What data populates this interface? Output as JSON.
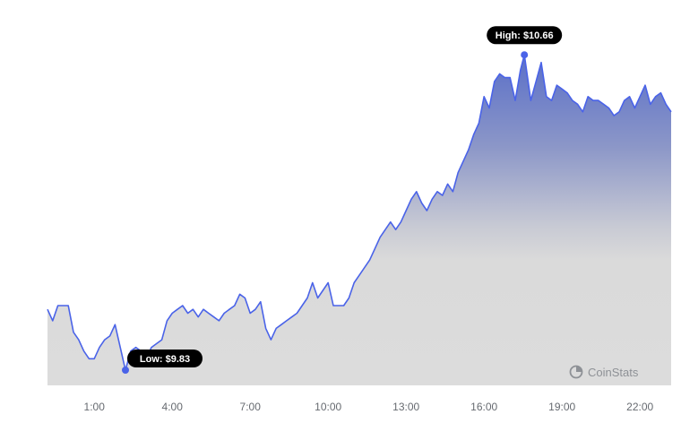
{
  "chart_data": {
    "type": "area",
    "x_ticks": [
      "1:00",
      "4:00",
      "7:00",
      "10:00",
      "13:00",
      "16:00",
      "19:00",
      "22:00"
    ],
    "x_range_hours": [
      -0.8,
      23.2
    ],
    "ylim": [
      9.79,
      10.71
    ],
    "grid": false,
    "annotations": {
      "high": {
        "label": "High: $10.66",
        "x": 17.55,
        "y": 10.66
      },
      "low": {
        "label": "Low: $9.83",
        "x": 2.2,
        "y": 9.83
      }
    },
    "series": [
      {
        "x": [
          -0.8,
          -0.6,
          -0.4,
          -0.2,
          0.0,
          0.2,
          0.4,
          0.6,
          0.8,
          1.0,
          1.2,
          1.4,
          1.6,
          1.8,
          2.0,
          2.2,
          2.4,
          2.6,
          2.8,
          3.0,
          3.2,
          3.4,
          3.6,
          3.8,
          4.0,
          4.2,
          4.4,
          4.6,
          4.8,
          5.0,
          5.2,
          5.4,
          5.6,
          5.8,
          6.0,
          6.2,
          6.4,
          6.6,
          6.8,
          7.0,
          7.2,
          7.4,
          7.6,
          7.8,
          8.0,
          8.2,
          8.4,
          8.6,
          8.8,
          9.0,
          9.2,
          9.4,
          9.6,
          9.8,
          10.0,
          10.2,
          10.4,
          10.6,
          10.8,
          11.0,
          11.2,
          11.4,
          11.6,
          11.8,
          12.0,
          12.2,
          12.4,
          12.6,
          12.8,
          13.0,
          13.2,
          13.4,
          13.6,
          13.8,
          14.0,
          14.2,
          14.4,
          14.6,
          14.8,
          15.0,
          15.2,
          15.4,
          15.6,
          15.8,
          16.0,
          16.2,
          16.4,
          16.6,
          16.8,
          17.0,
          17.2,
          17.4,
          17.55,
          17.8,
          18.0,
          18.2,
          18.4,
          18.6,
          18.8,
          19.0,
          19.2,
          19.4,
          19.6,
          19.8,
          20.0,
          20.2,
          20.4,
          20.6,
          20.8,
          21.0,
          21.2,
          21.4,
          21.6,
          21.8,
          22.0,
          22.2,
          22.4,
          22.6,
          22.8,
          23.0,
          23.2
        ],
        "values": [
          9.99,
          9.96,
          10.0,
          10.0,
          10.0,
          9.93,
          9.91,
          9.88,
          9.86,
          9.86,
          9.89,
          9.91,
          9.92,
          9.95,
          9.89,
          9.83,
          9.88,
          9.89,
          9.88,
          9.86,
          9.89,
          9.9,
          9.91,
          9.96,
          9.98,
          9.99,
          10.0,
          9.98,
          9.99,
          9.97,
          9.99,
          9.98,
          9.97,
          9.96,
          9.98,
          9.99,
          10.0,
          10.03,
          10.02,
          9.98,
          9.99,
          10.01,
          9.94,
          9.91,
          9.94,
          9.95,
          9.96,
          9.97,
          9.98,
          10.0,
          10.02,
          10.06,
          10.02,
          10.04,
          10.06,
          10.0,
          10.0,
          10.0,
          10.02,
          10.06,
          10.08,
          10.1,
          10.12,
          10.15,
          10.18,
          10.2,
          10.22,
          10.2,
          10.22,
          10.25,
          10.28,
          10.3,
          10.27,
          10.25,
          10.28,
          10.3,
          10.29,
          10.32,
          10.3,
          10.35,
          10.38,
          10.41,
          10.45,
          10.48,
          10.55,
          10.52,
          10.59,
          10.61,
          10.6,
          10.6,
          10.54,
          10.62,
          10.66,
          10.54,
          10.59,
          10.64,
          10.55,
          10.54,
          10.58,
          10.57,
          10.56,
          10.54,
          10.53,
          10.51,
          10.55,
          10.54,
          10.54,
          10.53,
          10.52,
          10.5,
          10.51,
          10.54,
          10.55,
          10.52,
          10.55,
          10.58,
          10.53,
          10.55,
          10.56,
          10.53,
          10.51
        ]
      }
    ]
  },
  "watermark": {
    "brand": "CoinStats",
    "icon": "coinstats-logo-icon"
  },
  "colors": {
    "line": "#4a63e8",
    "fill_top": "#5a6fc8",
    "fill_bottom": "#dcdcdc",
    "pill_bg": "#000000",
    "tick_text": "#666a70"
  }
}
